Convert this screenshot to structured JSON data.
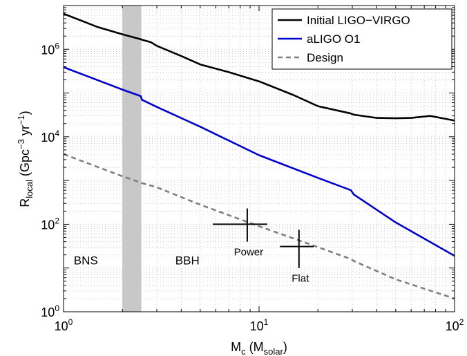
{
  "chart_data": {
    "type": "line",
    "xscale": "log",
    "yscale": "log",
    "xlim": [
      1,
      100
    ],
    "ylim": [
      1,
      10000000
    ],
    "xlabel": {
      "main": "M",
      "sub": "c",
      "rest_open": " (M",
      "rest_sub": "solar",
      "rest_close": ")"
    },
    "ylabel": {
      "main": "R",
      "sub": "local",
      "rest": " (Gpc",
      "sup1": "−3",
      "mid": " yr",
      "sup2": "−1",
      "close": ")"
    },
    "x_ticks": [
      {
        "value": 1,
        "base": "10",
        "exp": "0"
      },
      {
        "value": 10,
        "base": "10",
        "exp": "1"
      },
      {
        "value": 100,
        "base": "10",
        "exp": "2"
      }
    ],
    "y_ticks": [
      {
        "value": 1,
        "base": "10",
        "exp": "0"
      },
      {
        "value": 100,
        "base": "10",
        "exp": "2"
      },
      {
        "value": 10000,
        "base": "10",
        "exp": "4"
      },
      {
        "value": 1000000,
        "base": "10",
        "exp": "6"
      }
    ],
    "grid": "dotted, minor x and y",
    "legend_position": "top-right",
    "series": [
      {
        "name": "Initial LIGO−VIRGO",
        "color": "#000000",
        "dash": "solid",
        "x": [
          1,
          1.5,
          2,
          2.48,
          2.52,
          2.8,
          3,
          4,
          5,
          7,
          10,
          15,
          20,
          29.5,
          30.5,
          40,
          50,
          60,
          75,
          100
        ],
        "y": [
          6500000,
          3200000,
          2200000,
          1700000,
          1650000,
          1450000,
          1200000,
          700000,
          450000,
          300000,
          185000,
          90000,
          50000,
          34000,
          32000,
          27000,
          26500,
          27000,
          30000,
          23500
        ]
      },
      {
        "name": "aLIGO O1",
        "color": "#0000cc",
        "dash": "solid",
        "x": [
          1,
          2,
          2.48,
          2.52,
          3,
          5,
          10,
          20,
          29.5,
          30.5,
          50,
          100
        ],
        "y": [
          390000,
          120000,
          85000,
          70000,
          48000,
          17000,
          3800,
          1150,
          600,
          480,
          110,
          19
        ]
      },
      {
        "name": "Design",
        "color": "#7f7f7f",
        "dash": "dashed",
        "x": [
          1,
          2,
          2.48,
          2.52,
          3,
          5,
          10,
          20,
          29.5,
          30.5,
          50,
          100
        ],
        "y": [
          4000,
          1250,
          900,
          870,
          700,
          280,
          90,
          30,
          16,
          14.5,
          5.5,
          2
        ]
      }
    ],
    "shaded_band": {
      "x_range": [
        2,
        2.5
      ],
      "color": "#c8c8c8"
    },
    "region_labels": [
      {
        "text": "BNS",
        "x": 1.3,
        "y": 12
      },
      {
        "text": "BBH",
        "x": 4.3,
        "y": 12
      }
    ],
    "markers": [
      {
        "label": "Power",
        "x": 8.7,
        "y": 100,
        "x_range": [
          5.8,
          11
        ],
        "y_range": [
          40,
          230
        ]
      },
      {
        "label": "Flat",
        "x": 16,
        "y": 31,
        "x_range": [
          12.8,
          19
        ],
        "y_range": [
          10,
          75
        ]
      }
    ]
  }
}
